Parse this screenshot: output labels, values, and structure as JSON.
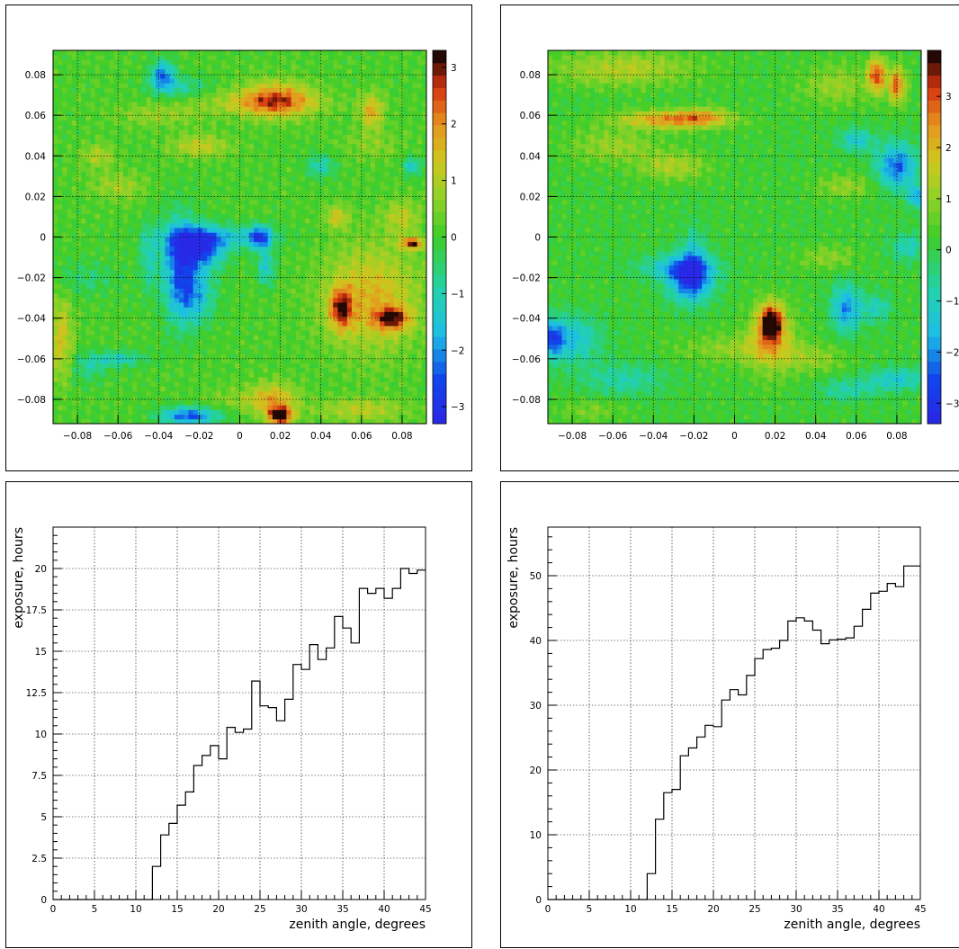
{
  "chart_data": [
    {
      "type": "heatmap",
      "panel": "top-left",
      "title": "",
      "xlabel": "",
      "ylabel": "",
      "xlim": [
        -0.092,
        0.092
      ],
      "ylim": [
        -0.092,
        0.092
      ],
      "xticks": [
        "-0.08",
        "-0.06",
        "-0.04",
        "-0.02",
        "0",
        "0.02",
        "0.04",
        "0.06",
        "0.08"
      ],
      "yticks": [
        "0.08",
        "0.06",
        "0.04",
        "0.02",
        "0",
        "-0.02",
        "-0.04",
        "-0.06",
        "-0.08"
      ],
      "grid": true,
      "color_scale": {
        "min": -3.3,
        "max": 3.3,
        "ticks": [
          "3",
          "2",
          "1",
          "0",
          "-1",
          "-2",
          "-3"
        ]
      },
      "bins": 80,
      "background": 0.1,
      "features": [
        {
          "x": -0.038,
          "y": 0.08,
          "sx": 0.004,
          "sy": 0.005,
          "v": -2.2
        },
        {
          "x": -0.03,
          "y": 0.074,
          "sx": 0.01,
          "sy": 0.004,
          "v": -1.0
        },
        {
          "x": 0.018,
          "y": 0.068,
          "sx": 0.012,
          "sy": 0.006,
          "v": 2.1
        },
        {
          "x": 0.008,
          "y": 0.066,
          "sx": 0.025,
          "sy": 0.004,
          "v": 0.8
        },
        {
          "x": 0.065,
          "y": 0.062,
          "sx": 0.004,
          "sy": 0.006,
          "v": 1.6
        },
        {
          "x": -0.04,
          "y": 0.06,
          "sx": 0.015,
          "sy": 0.004,
          "v": 0.6
        },
        {
          "x": -0.02,
          "y": 0.045,
          "sx": 0.01,
          "sy": 0.004,
          "v": 1.1
        },
        {
          "x": -0.07,
          "y": 0.04,
          "sx": 0.006,
          "sy": 0.004,
          "v": 0.9
        },
        {
          "x": 0.04,
          "y": 0.035,
          "sx": 0.005,
          "sy": 0.004,
          "v": -1.2
        },
        {
          "x": 0.085,
          "y": 0.035,
          "sx": 0.003,
          "sy": 0.003,
          "v": -1.5
        },
        {
          "x": -0.06,
          "y": 0.025,
          "sx": 0.01,
          "sy": 0.005,
          "v": 0.7
        },
        {
          "x": -0.02,
          "y": -0.005,
          "sx": 0.009,
          "sy": 0.007,
          "v": -2.7
        },
        {
          "x": -0.03,
          "y": -0.015,
          "sx": 0.006,
          "sy": 0.018,
          "v": -2.0
        },
        {
          "x": -0.01,
          "y": 0.0,
          "sx": 0.02,
          "sy": 0.004,
          "v": -1.2
        },
        {
          "x": 0.01,
          "y": 0.0,
          "sx": 0.004,
          "sy": 0.004,
          "v": -2.5
        },
        {
          "x": -0.045,
          "y": -0.01,
          "sx": 0.003,
          "sy": 0.012,
          "v": -1.0
        },
        {
          "x": -0.022,
          "y": -0.028,
          "sx": 0.007,
          "sy": 0.01,
          "v": -1.6
        },
        {
          "x": 0.013,
          "y": -0.015,
          "sx": 0.003,
          "sy": 0.006,
          "v": -1.5
        },
        {
          "x": -0.075,
          "y": -0.02,
          "sx": 0.012,
          "sy": 0.006,
          "v": -0.6
        },
        {
          "x": 0.065,
          "y": -0.03,
          "sx": 0.016,
          "sy": 0.018,
          "v": 1.5
        },
        {
          "x": 0.05,
          "y": -0.035,
          "sx": 0.004,
          "sy": 0.007,
          "v": 2.4
        },
        {
          "x": 0.075,
          "y": -0.04,
          "sx": 0.006,
          "sy": 0.004,
          "v": 2.3
        },
        {
          "x": 0.085,
          "y": -0.003,
          "sx": 0.004,
          "sy": 0.002,
          "v": 2.6
        },
        {
          "x": 0.048,
          "y": 0.01,
          "sx": 0.004,
          "sy": 0.004,
          "v": 1.2
        },
        {
          "x": 0.08,
          "y": 0.01,
          "sx": 0.006,
          "sy": 0.006,
          "v": 1.0
        },
        {
          "x": -0.088,
          "y": -0.05,
          "sx": 0.004,
          "sy": 0.014,
          "v": 1.3
        },
        {
          "x": -0.075,
          "y": -0.065,
          "sx": 0.006,
          "sy": 0.005,
          "v": -0.8
        },
        {
          "x": 0.02,
          "y": -0.088,
          "sx": 0.004,
          "sy": 0.003,
          "v": 3.4
        },
        {
          "x": 0.017,
          "y": -0.08,
          "sx": 0.008,
          "sy": 0.006,
          "v": 1.5
        },
        {
          "x": -0.025,
          "y": -0.088,
          "sx": 0.01,
          "sy": 0.003,
          "v": -2.6
        },
        {
          "x": 0.0,
          "y": -0.08,
          "sx": 0.012,
          "sy": 0.004,
          "v": 0.5
        },
        {
          "x": 0.06,
          "y": -0.085,
          "sx": 0.015,
          "sy": 0.004,
          "v": 1.0
        },
        {
          "x": -0.06,
          "y": -0.06,
          "sx": 0.01,
          "sy": 0.003,
          "v": -1.2
        },
        {
          "x": 0.065,
          "y": 0.045,
          "sx": 0.01,
          "sy": 0.005,
          "v": 0.5
        }
      ]
    },
    {
      "type": "heatmap",
      "panel": "top-right",
      "title": "",
      "xlabel": "",
      "ylabel": "",
      "xlim": [
        -0.092,
        0.092
      ],
      "ylim": [
        -0.092,
        0.092
      ],
      "xticks": [
        "-0.08",
        "-0.06",
        "-0.04",
        "-0.02",
        "0",
        "0.02",
        "0.04",
        "0.06",
        "0.08"
      ],
      "yticks": [
        "0.08",
        "0.06",
        "0.04",
        "0.02",
        "0",
        "-0.02",
        "-0.04",
        "-0.06",
        "-0.08"
      ],
      "grid": true,
      "color_scale": {
        "min": -3.4,
        "max": 3.9,
        "ticks": [
          "3",
          "2",
          "1",
          "0",
          "-1",
          "-2",
          "-3"
        ]
      },
      "bins": 80,
      "background": 0.2,
      "features": [
        {
          "x": -0.055,
          "y": 0.083,
          "sx": 0.025,
          "sy": 0.006,
          "v": 1.2
        },
        {
          "x": -0.03,
          "y": 0.058,
          "sx": 0.018,
          "sy": 0.003,
          "v": 2.4
        },
        {
          "x": -0.015,
          "y": 0.06,
          "sx": 0.008,
          "sy": 0.003,
          "v": 1.0
        },
        {
          "x": 0.07,
          "y": 0.08,
          "sx": 0.003,
          "sy": 0.006,
          "v": 2.8
        },
        {
          "x": 0.08,
          "y": 0.075,
          "sx": 0.003,
          "sy": 0.006,
          "v": 2.6
        },
        {
          "x": 0.05,
          "y": 0.075,
          "sx": 0.012,
          "sy": 0.007,
          "v": 0.9
        },
        {
          "x": -0.06,
          "y": 0.045,
          "sx": 0.015,
          "sy": 0.006,
          "v": 0.9
        },
        {
          "x": -0.03,
          "y": 0.035,
          "sx": 0.012,
          "sy": 0.005,
          "v": 1.1
        },
        {
          "x": 0.08,
          "y": 0.035,
          "sx": 0.007,
          "sy": 0.008,
          "v": -2.5
        },
        {
          "x": 0.06,
          "y": 0.048,
          "sx": 0.006,
          "sy": 0.004,
          "v": -1.5
        },
        {
          "x": 0.09,
          "y": 0.02,
          "sx": 0.003,
          "sy": 0.004,
          "v": -2.0
        },
        {
          "x": 0.055,
          "y": 0.025,
          "sx": 0.01,
          "sy": 0.004,
          "v": 0.9
        },
        {
          "x": -0.022,
          "y": -0.02,
          "sx": 0.008,
          "sy": 0.008,
          "v": -2.9
        },
        {
          "x": -0.03,
          "y": -0.015,
          "sx": 0.014,
          "sy": 0.004,
          "v": -1.2
        },
        {
          "x": -0.02,
          "y": -0.01,
          "sx": 0.004,
          "sy": 0.012,
          "v": -1.0
        },
        {
          "x": 0.018,
          "y": -0.042,
          "sx": 0.004,
          "sy": 0.006,
          "v": 3.5
        },
        {
          "x": 0.018,
          "y": -0.05,
          "sx": 0.008,
          "sy": 0.012,
          "v": 1.5
        },
        {
          "x": 0.0,
          "y": -0.055,
          "sx": 0.02,
          "sy": 0.005,
          "v": 0.8
        },
        {
          "x": 0.055,
          "y": -0.035,
          "sx": 0.005,
          "sy": 0.008,
          "v": -2.2
        },
        {
          "x": 0.07,
          "y": -0.035,
          "sx": 0.005,
          "sy": 0.005,
          "v": -1.2
        },
        {
          "x": 0.08,
          "y": -0.07,
          "sx": 0.01,
          "sy": 0.004,
          "v": -1.5
        },
        {
          "x": 0.055,
          "y": -0.075,
          "sx": 0.01,
          "sy": 0.004,
          "v": -1.0
        },
        {
          "x": -0.08,
          "y": -0.05,
          "sx": 0.01,
          "sy": 0.008,
          "v": -1.6
        },
        {
          "x": -0.09,
          "y": -0.05,
          "sx": 0.004,
          "sy": 0.006,
          "v": -2.2
        },
        {
          "x": -0.055,
          "y": -0.07,
          "sx": 0.015,
          "sy": 0.006,
          "v": -1.0
        },
        {
          "x": -0.07,
          "y": -0.085,
          "sx": 0.012,
          "sy": 0.004,
          "v": 0.6
        },
        {
          "x": 0.045,
          "y": -0.01,
          "sx": 0.01,
          "sy": 0.004,
          "v": 0.8
        },
        {
          "x": 0.04,
          "y": -0.06,
          "sx": 0.01,
          "sy": 0.005,
          "v": 0.8
        },
        {
          "x": 0.085,
          "y": -0.005,
          "sx": 0.006,
          "sy": 0.005,
          "v": -1.2
        }
      ]
    },
    {
      "type": "line",
      "panel": "bottom-left",
      "step": true,
      "xlabel": "zenith angle, degrees",
      "ylabel": "exposure, hours",
      "xlim": [
        0,
        45
      ],
      "ylim": [
        0,
        22.5
      ],
      "xticks": [
        "0",
        "5",
        "10",
        "15",
        "20",
        "25",
        "30",
        "35",
        "40",
        "45"
      ],
      "yticks": [
        "0",
        "2.5",
        "5",
        "7.5",
        "10",
        "12.5",
        "15",
        "17.5",
        "20"
      ],
      "grid": true,
      "bin_width": 1,
      "x_start": 0,
      "values": [
        0,
        0,
        0,
        0,
        0,
        0,
        0,
        0,
        0,
        0,
        0,
        0,
        2.0,
        3.9,
        4.6,
        5.7,
        6.5,
        8.1,
        8.7,
        9.3,
        8.5,
        10.4,
        10.1,
        10.3,
        13.2,
        11.7,
        11.6,
        10.8,
        12.1,
        14.2,
        13.9,
        15.4,
        14.5,
        15.2,
        17.1,
        16.4,
        15.5,
        18.8,
        18.5,
        18.8,
        18.2,
        18.8,
        20.0,
        19.7,
        19.9
      ]
    },
    {
      "type": "line",
      "panel": "bottom-right",
      "step": true,
      "xlabel": "zenith angle, degrees",
      "ylabel": "exposure, hours",
      "xlim": [
        0,
        45
      ],
      "ylim": [
        0,
        57.5
      ],
      "xticks": [
        "0",
        "5",
        "10",
        "15",
        "20",
        "25",
        "30",
        "35",
        "40",
        "45"
      ],
      "yticks": [
        "0",
        "10",
        "20",
        "30",
        "40",
        "50"
      ],
      "grid": true,
      "bin_width": 1,
      "x_start": 0,
      "values": [
        0,
        0,
        0,
        0,
        0,
        0,
        0,
        0,
        0,
        0,
        0,
        0,
        4.0,
        12.4,
        16.5,
        17.0,
        22.2,
        23.4,
        25.1,
        26.9,
        26.7,
        30.8,
        32.4,
        31.6,
        34.6,
        37.2,
        38.6,
        38.8,
        40.0,
        43.0,
        43.5,
        43.0,
        41.6,
        39.5,
        40.1,
        40.2,
        40.4,
        42.2,
        44.8,
        47.3,
        47.6,
        48.8,
        48.3,
        51.5,
        51.5
      ]
    }
  ]
}
